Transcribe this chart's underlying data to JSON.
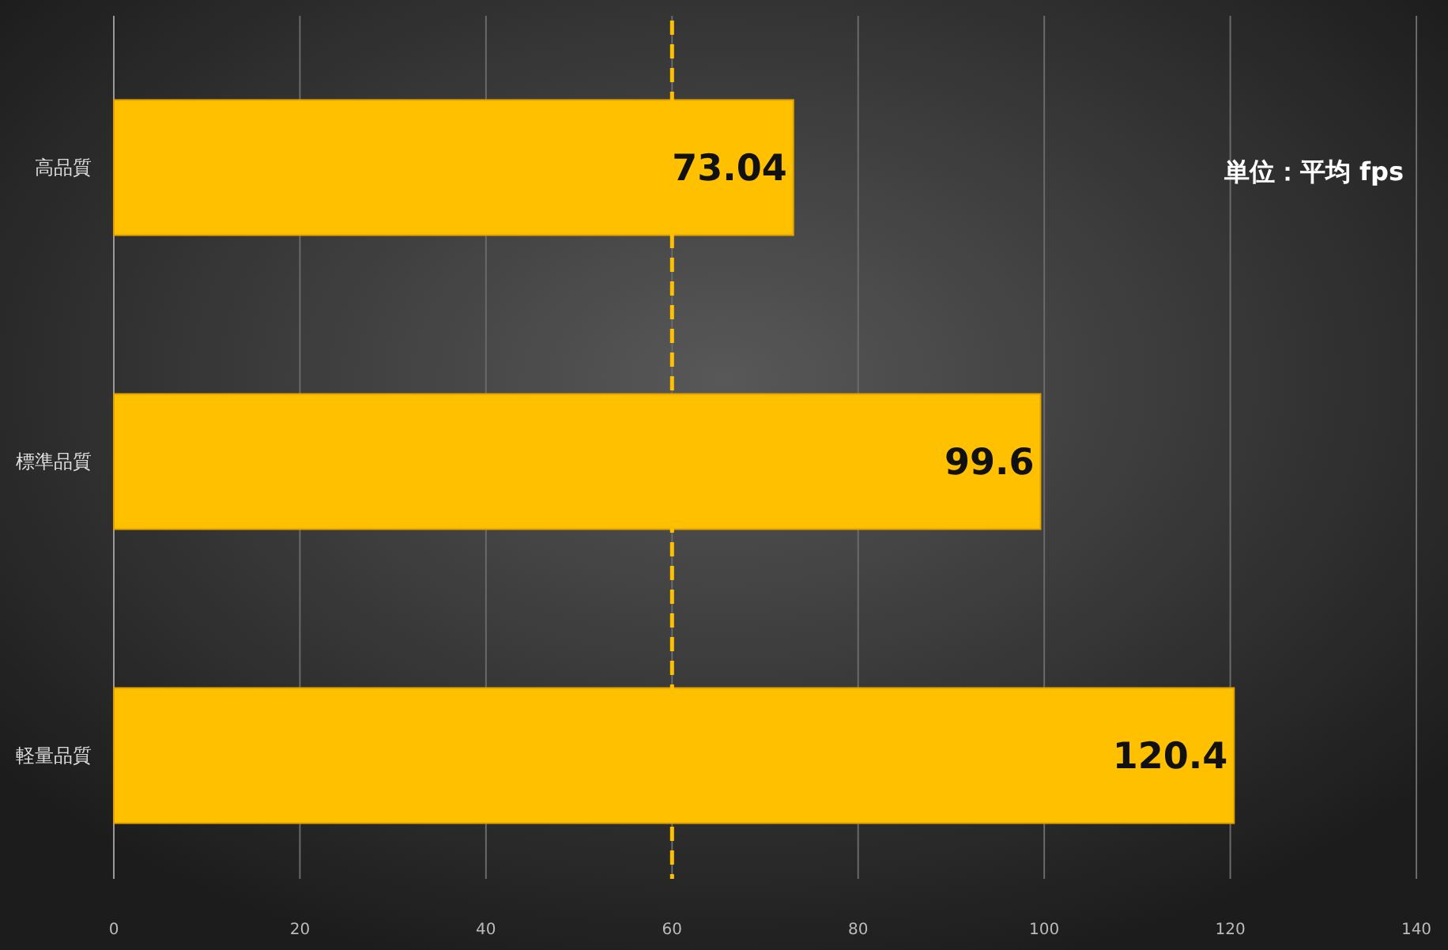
{
  "chart_data": {
    "type": "bar",
    "orientation": "horizontal",
    "categories": [
      "高品質",
      "標準品質",
      "軽量品質"
    ],
    "values": [
      73.04,
      99.6,
      120.4
    ],
    "color": "#ffc000",
    "xlim": [
      0,
      140
    ],
    "xticks": [
      0,
      20,
      40,
      60,
      80,
      100,
      120,
      140
    ],
    "grid": "x",
    "ref_lines": [
      {
        "axis": "x",
        "value": 60,
        "color": "#ffc000",
        "line_style": "dashed"
      }
    ],
    "annotations": [
      "単位：平均 fps"
    ],
    "data_labels": true
  }
}
